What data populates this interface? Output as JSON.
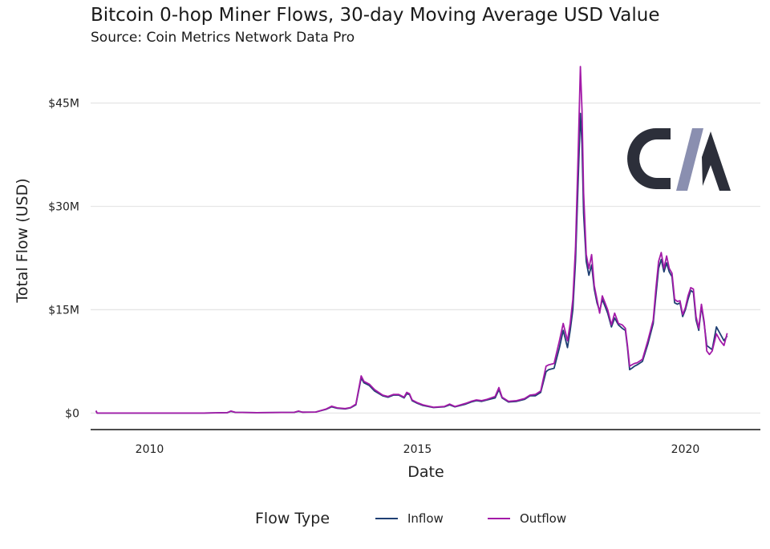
{
  "title": "Bitcoin 0-hop Miner Flows, 30-day Moving Average USD Value",
  "subtitle": "Source: Coin Metrics Network Data Pro",
  "legend": {
    "title": "Flow Type",
    "items": [
      {
        "label": "Inflow",
        "color": "#1f3f73"
      },
      {
        "label": "Outflow",
        "color": "#a31aa8"
      }
    ]
  },
  "logo": {
    "text": "CM",
    "colors": [
      "#2c2f3a",
      "#8a8fb0"
    ]
  },
  "chart_data": {
    "type": "line",
    "xlabel": "Date",
    "ylabel": "Total Flow (USD)",
    "xlim": [
      2008.9,
      2021.4
    ],
    "ylim": [
      -2.4,
      51
    ],
    "x_ticks": [
      2010,
      2015,
      2020
    ],
    "x_tick_labels": [
      "2010",
      "2015",
      "2020"
    ],
    "y_ticks": [
      0,
      15,
      30,
      45
    ],
    "y_tick_labels": [
      "$0",
      "$15M",
      "$30M",
      "$45M"
    ],
    "y_unit": "USD millions",
    "grid": "horizontal",
    "legend_position": "bottom",
    "series": [
      {
        "name": "Inflow",
        "color": "#1f3f73",
        "points": [
          [
            2009.0,
            0.3
          ],
          [
            2009.02,
            0.0
          ],
          [
            2010.0,
            0.0
          ],
          [
            2011.0,
            0.0
          ],
          [
            2011.45,
            0.05
          ],
          [
            2011.52,
            0.25
          ],
          [
            2011.6,
            0.1
          ],
          [
            2012.0,
            0.05
          ],
          [
            2012.7,
            0.1
          ],
          [
            2012.78,
            0.25
          ],
          [
            2012.85,
            0.12
          ],
          [
            2013.1,
            0.15
          ],
          [
            2013.3,
            0.55
          ],
          [
            2013.4,
            0.9
          ],
          [
            2013.5,
            0.7
          ],
          [
            2013.65,
            0.6
          ],
          [
            2013.75,
            0.75
          ],
          [
            2013.85,
            1.2
          ],
          [
            2013.95,
            5.1
          ],
          [
            2014.0,
            4.4
          ],
          [
            2014.1,
            4.0
          ],
          [
            2014.2,
            3.2
          ],
          [
            2014.35,
            2.5
          ],
          [
            2014.45,
            2.3
          ],
          [
            2014.55,
            2.6
          ],
          [
            2014.65,
            2.6
          ],
          [
            2014.75,
            2.2
          ],
          [
            2014.8,
            2.8
          ],
          [
            2014.85,
            2.7
          ],
          [
            2014.9,
            1.8
          ],
          [
            2015.0,
            1.4
          ],
          [
            2015.1,
            1.1
          ],
          [
            2015.3,
            0.8
          ],
          [
            2015.5,
            0.9
          ],
          [
            2015.6,
            1.2
          ],
          [
            2015.7,
            0.9
          ],
          [
            2015.9,
            1.3
          ],
          [
            2016.0,
            1.6
          ],
          [
            2016.1,
            1.8
          ],
          [
            2016.2,
            1.7
          ],
          [
            2016.3,
            1.9
          ],
          [
            2016.45,
            2.2
          ],
          [
            2016.52,
            3.4
          ],
          [
            2016.58,
            2.2
          ],
          [
            2016.7,
            1.6
          ],
          [
            2016.85,
            1.7
          ],
          [
            2017.0,
            2.0
          ],
          [
            2017.1,
            2.5
          ],
          [
            2017.2,
            2.5
          ],
          [
            2017.3,
            3.0
          ],
          [
            2017.4,
            6.0
          ],
          [
            2017.45,
            6.3
          ],
          [
            2017.55,
            6.5
          ],
          [
            2017.65,
            9.5
          ],
          [
            2017.72,
            12.0
          ],
          [
            2017.8,
            9.5
          ],
          [
            2017.85,
            12.0
          ],
          [
            2017.9,
            15.0
          ],
          [
            2017.95,
            22.0
          ],
          [
            2018.0,
            34.0
          ],
          [
            2018.04,
            43.5
          ],
          [
            2018.07,
            39.0
          ],
          [
            2018.1,
            29.0
          ],
          [
            2018.15,
            22.0
          ],
          [
            2018.2,
            20.0
          ],
          [
            2018.25,
            21.5
          ],
          [
            2018.3,
            18.0
          ],
          [
            2018.35,
            16.0
          ],
          [
            2018.4,
            14.8
          ],
          [
            2018.45,
            16.5
          ],
          [
            2018.5,
            15.5
          ],
          [
            2018.55,
            14.5
          ],
          [
            2018.62,
            12.5
          ],
          [
            2018.68,
            13.8
          ],
          [
            2018.75,
            12.8
          ],
          [
            2018.82,
            12.3
          ],
          [
            2018.88,
            12.0
          ],
          [
            2018.92,
            9.5
          ],
          [
            2018.96,
            6.3
          ],
          [
            2019.0,
            6.5
          ],
          [
            2019.05,
            6.8
          ],
          [
            2019.1,
            7.0
          ],
          [
            2019.2,
            7.5
          ],
          [
            2019.3,
            10.0
          ],
          [
            2019.4,
            13.0
          ],
          [
            2019.45,
            17.0
          ],
          [
            2019.5,
            21.0
          ],
          [
            2019.55,
            22.3
          ],
          [
            2019.6,
            20.5
          ],
          [
            2019.65,
            21.8
          ],
          [
            2019.7,
            20.5
          ],
          [
            2019.75,
            19.8
          ],
          [
            2019.8,
            16.0
          ],
          [
            2019.85,
            15.8
          ],
          [
            2019.9,
            16.0
          ],
          [
            2019.95,
            14.0
          ],
          [
            2020.0,
            15.0
          ],
          [
            2020.05,
            16.5
          ],
          [
            2020.1,
            17.8
          ],
          [
            2020.15,
            17.5
          ],
          [
            2020.2,
            13.5
          ],
          [
            2020.25,
            12.0
          ],
          [
            2020.3,
            15.5
          ],
          [
            2020.35,
            13.0
          ],
          [
            2020.4,
            9.8
          ],
          [
            2020.45,
            9.5
          ],
          [
            2020.5,
            9.2
          ],
          [
            2020.58,
            12.5
          ],
          [
            2020.65,
            11.5
          ],
          [
            2020.72,
            10.5
          ],
          [
            2020.78,
            11.2
          ]
        ]
      },
      {
        "name": "Outflow",
        "color": "#a31aa8",
        "points": [
          [
            2009.0,
            0.35
          ],
          [
            2009.02,
            0.0
          ],
          [
            2010.0,
            0.0
          ],
          [
            2011.0,
            0.0
          ],
          [
            2011.45,
            0.05
          ],
          [
            2011.52,
            0.3
          ],
          [
            2011.6,
            0.1
          ],
          [
            2012.0,
            0.05
          ],
          [
            2012.7,
            0.1
          ],
          [
            2012.78,
            0.3
          ],
          [
            2012.85,
            0.12
          ],
          [
            2013.1,
            0.15
          ],
          [
            2013.3,
            0.6
          ],
          [
            2013.4,
            1.0
          ],
          [
            2013.5,
            0.75
          ],
          [
            2013.65,
            0.65
          ],
          [
            2013.75,
            0.8
          ],
          [
            2013.85,
            1.3
          ],
          [
            2013.95,
            5.4
          ],
          [
            2014.0,
            4.6
          ],
          [
            2014.1,
            4.2
          ],
          [
            2014.2,
            3.4
          ],
          [
            2014.35,
            2.6
          ],
          [
            2014.45,
            2.4
          ],
          [
            2014.55,
            2.7
          ],
          [
            2014.65,
            2.7
          ],
          [
            2014.75,
            2.3
          ],
          [
            2014.8,
            3.0
          ],
          [
            2014.85,
            2.8
          ],
          [
            2014.9,
            1.9
          ],
          [
            2015.0,
            1.5
          ],
          [
            2015.1,
            1.2
          ],
          [
            2015.3,
            0.85
          ],
          [
            2015.5,
            0.95
          ],
          [
            2015.6,
            1.3
          ],
          [
            2015.7,
            0.95
          ],
          [
            2015.9,
            1.4
          ],
          [
            2016.0,
            1.7
          ],
          [
            2016.1,
            1.9
          ],
          [
            2016.2,
            1.8
          ],
          [
            2016.3,
            2.0
          ],
          [
            2016.45,
            2.4
          ],
          [
            2016.52,
            3.7
          ],
          [
            2016.58,
            2.3
          ],
          [
            2016.7,
            1.7
          ],
          [
            2016.85,
            1.8
          ],
          [
            2017.0,
            2.1
          ],
          [
            2017.1,
            2.6
          ],
          [
            2017.2,
            2.7
          ],
          [
            2017.3,
            3.2
          ],
          [
            2017.4,
            6.8
          ],
          [
            2017.45,
            7.0
          ],
          [
            2017.55,
            7.2
          ],
          [
            2017.65,
            10.5
          ],
          [
            2017.72,
            13.0
          ],
          [
            2017.8,
            10.5
          ],
          [
            2017.85,
            13.0
          ],
          [
            2017.9,
            16.5
          ],
          [
            2017.95,
            24.0
          ],
          [
            2018.0,
            38.0
          ],
          [
            2018.04,
            50.3
          ],
          [
            2018.07,
            44.0
          ],
          [
            2018.1,
            32.0
          ],
          [
            2018.15,
            23.0
          ],
          [
            2018.2,
            21.0
          ],
          [
            2018.25,
            23.0
          ],
          [
            2018.3,
            18.5
          ],
          [
            2018.35,
            16.5
          ],
          [
            2018.4,
            14.5
          ],
          [
            2018.45,
            17.0
          ],
          [
            2018.5,
            16.0
          ],
          [
            2018.55,
            15.0
          ],
          [
            2018.62,
            12.8
          ],
          [
            2018.68,
            14.5
          ],
          [
            2018.75,
            13.0
          ],
          [
            2018.82,
            12.8
          ],
          [
            2018.88,
            12.3
          ],
          [
            2018.92,
            9.8
          ],
          [
            2018.96,
            6.8
          ],
          [
            2019.0,
            7.0
          ],
          [
            2019.05,
            7.2
          ],
          [
            2019.1,
            7.3
          ],
          [
            2019.2,
            7.8
          ],
          [
            2019.3,
            10.5
          ],
          [
            2019.4,
            13.5
          ],
          [
            2019.45,
            18.0
          ],
          [
            2019.5,
            22.0
          ],
          [
            2019.55,
            23.3
          ],
          [
            2019.6,
            21.0
          ],
          [
            2019.65,
            22.8
          ],
          [
            2019.7,
            21.0
          ],
          [
            2019.75,
            20.3
          ],
          [
            2019.8,
            16.5
          ],
          [
            2019.85,
            16.2
          ],
          [
            2019.9,
            16.3
          ],
          [
            2019.95,
            14.3
          ],
          [
            2020.0,
            15.3
          ],
          [
            2020.05,
            17.0
          ],
          [
            2020.1,
            18.2
          ],
          [
            2020.15,
            18.0
          ],
          [
            2020.2,
            14.0
          ],
          [
            2020.25,
            12.3
          ],
          [
            2020.3,
            15.8
          ],
          [
            2020.35,
            13.3
          ],
          [
            2020.4,
            9.0
          ],
          [
            2020.45,
            8.5
          ],
          [
            2020.5,
            9.0
          ],
          [
            2020.58,
            11.5
          ],
          [
            2020.65,
            10.5
          ],
          [
            2020.72,
            9.8
          ],
          [
            2020.78,
            11.6
          ]
        ]
      }
    ]
  }
}
